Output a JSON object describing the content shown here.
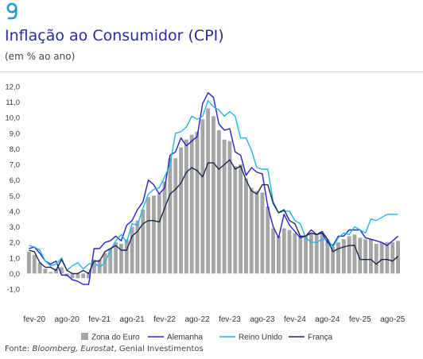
{
  "header": {
    "title": "Inflação ao Consumidor (CPI)",
    "subtitle": "(em % ao ano)"
  },
  "footer": {
    "source_prefix": "Fonte: ",
    "source_italic": "Bloomberg, Eurostat",
    "source_suffix": ", Genial Investimentos"
  },
  "colors": {
    "accent": "#2b2aa3",
    "bars": "#a6a6a6",
    "alemanha": "#2a1fd0",
    "reino_unido": "#1fb6e8",
    "franca": "#1b2a4e"
  },
  "chart_data": {
    "type": "bar",
    "ylim": [
      -1,
      12
    ],
    "y_ticks": [
      "-1,0",
      "0,0",
      "1,0",
      "2,0",
      "3,0",
      "4,0",
      "5,0",
      "6,0",
      "7,0",
      "8,0",
      "9,0",
      "10,0",
      "11,0",
      "12,0"
    ],
    "x_tick_labels": [
      {
        "label": "fev-20",
        "index": 1
      },
      {
        "label": "ago-20",
        "index": 7
      },
      {
        "label": "fev-21",
        "index": 13
      },
      {
        "label": "ago-21",
        "index": 19
      },
      {
        "label": "fev-22",
        "index": 25
      },
      {
        "label": "ago-22",
        "index": 31
      },
      {
        "label": "fev-23",
        "index": 37
      },
      {
        "label": "ago-23",
        "index": 43
      },
      {
        "label": "fev-24",
        "index": 49
      },
      {
        "label": "ago-24",
        "index": 55
      },
      {
        "label": "fev-25",
        "index": 61
      },
      {
        "label": "ago-25",
        "index": 67
      }
    ],
    "categories": [
      "jan-20",
      "fev-20",
      "mar-20",
      "abr-20",
      "mai-20",
      "jun-20",
      "jul-20",
      "ago-20",
      "set-20",
      "out-20",
      "nov-20",
      "dez-20",
      "jan-21",
      "fev-21",
      "mar-21",
      "abr-21",
      "mai-21",
      "jun-21",
      "jul-21",
      "ago-21",
      "set-21",
      "out-21",
      "nov-21",
      "dez-21",
      "jan-22",
      "fev-22",
      "mar-22",
      "abr-22",
      "mai-22",
      "jun-22",
      "jul-22",
      "ago-22",
      "set-22",
      "out-22",
      "nov-22",
      "dez-22",
      "jan-23",
      "fev-23",
      "mar-23",
      "abr-23",
      "mai-23",
      "jun-23",
      "jul-23",
      "ago-23",
      "set-23",
      "out-23",
      "nov-23",
      "dez-23",
      "jan-24",
      "fev-24",
      "mar-24",
      "abr-24",
      "mai-24",
      "jun-24",
      "jul-24",
      "ago-24",
      "set-24",
      "out-24",
      "nov-24",
      "dez-24",
      "jan-25",
      "fev-25",
      "mar-25",
      "abr-25",
      "mai-25",
      "jun-25",
      "jul-25",
      "ago-25",
      "set-25"
    ],
    "series": [
      {
        "name": "Zona do Euro",
        "kind": "bar",
        "values": [
          1.4,
          1.2,
          0.7,
          0.3,
          0.1,
          0.3,
          0.4,
          -0.2,
          -0.3,
          -0.3,
          -0.3,
          -0.3,
          0.9,
          0.9,
          1.3,
          1.6,
          2.0,
          1.9,
          2.2,
          3.0,
          3.4,
          4.1,
          4.9,
          5.0,
          5.1,
          5.9,
          7.4,
          7.4,
          8.1,
          8.6,
          8.9,
          9.1,
          9.9,
          10.6,
          10.1,
          9.2,
          8.6,
          8.5,
          6.9,
          7.0,
          6.1,
          5.5,
          5.3,
          5.2,
          4.3,
          2.9,
          2.4,
          2.9,
          2.8,
          2.6,
          2.4,
          2.4,
          2.6,
          2.5,
          2.6,
          2.2,
          1.7,
          2.0,
          2.2,
          2.4,
          2.5,
          2.3,
          2.2,
          2.2,
          1.9,
          2.0,
          2.0,
          2.0,
          2.1
        ]
      },
      {
        "name": "Alemanha",
        "kind": "line",
        "values": [
          1.6,
          1.7,
          1.3,
          0.8,
          0.6,
          0.8,
          -0.1,
          -0.1,
          -0.4,
          -0.5,
          -0.7,
          -0.7,
          1.6,
          1.6,
          2.0,
          2.1,
          2.4,
          2.1,
          3.1,
          3.4,
          4.1,
          4.6,
          6.0,
          5.7,
          5.1,
          5.5,
          7.6,
          7.8,
          8.7,
          8.2,
          8.5,
          8.8,
          10.9,
          11.6,
          11.3,
          9.6,
          9.2,
          9.3,
          7.8,
          7.6,
          6.3,
          6.8,
          6.5,
          6.4,
          4.3,
          3.0,
          2.3,
          3.8,
          3.1,
          2.7,
          2.3,
          2.4,
          2.8,
          2.5,
          2.6,
          2.0,
          1.8,
          2.4,
          2.4,
          2.8,
          2.8,
          2.8,
          2.3,
          2.2,
          2.1,
          2.0,
          1.8,
          2.1,
          2.4
        ]
      },
      {
        "name": "Reino Unido",
        "kind": "line",
        "values": [
          1.8,
          1.7,
          1.5,
          0.8,
          0.5,
          0.6,
          1.0,
          0.2,
          0.5,
          0.7,
          0.3,
          0.6,
          0.7,
          0.4,
          0.7,
          1.5,
          2.1,
          2.5,
          2.0,
          3.2,
          3.1,
          4.2,
          5.1,
          5.4,
          5.5,
          6.2,
          7.0,
          9.0,
          9.1,
          9.4,
          10.1,
          9.9,
          10.1,
          11.1,
          10.7,
          10.5,
          10.1,
          10.4,
          10.1,
          8.7,
          8.7,
          7.9,
          6.8,
          6.7,
          6.7,
          4.6,
          3.9,
          4.0,
          4.0,
          3.4,
          3.2,
          2.3,
          2.0,
          2.0,
          2.2,
          2.2,
          1.7,
          2.3,
          2.6,
          2.5,
          3.0,
          2.8,
          2.6,
          3.5,
          3.4,
          3.6,
          3.8,
          3.8,
          3.8
        ]
      },
      {
        "name": "França",
        "kind": "line",
        "values": [
          1.5,
          1.4,
          0.7,
          0.4,
          0.4,
          0.2,
          0.9,
          0.2,
          0.0,
          0.0,
          0.2,
          0.0,
          0.8,
          0.8,
          1.4,
          1.6,
          1.8,
          1.5,
          1.5,
          2.4,
          2.7,
          3.2,
          3.4,
          3.4,
          3.3,
          4.2,
          5.1,
          5.4,
          5.8,
          6.5,
          6.8,
          6.6,
          6.2,
          7.1,
          7.1,
          6.7,
          7.0,
          7.3,
          6.7,
          6.9,
          6.0,
          5.3,
          5.1,
          5.7,
          5.7,
          4.5,
          3.9,
          4.1,
          3.4,
          3.2,
          2.4,
          2.4,
          2.6,
          2.5,
          2.7,
          2.2,
          1.4,
          1.6,
          1.7,
          1.8,
          1.8,
          0.9,
          0.9,
          0.9,
          0.6,
          0.9,
          0.9,
          0.8,
          1.1
        ]
      }
    ],
    "legend": {
      "placement": "bottom"
    },
    "grid": false
  }
}
